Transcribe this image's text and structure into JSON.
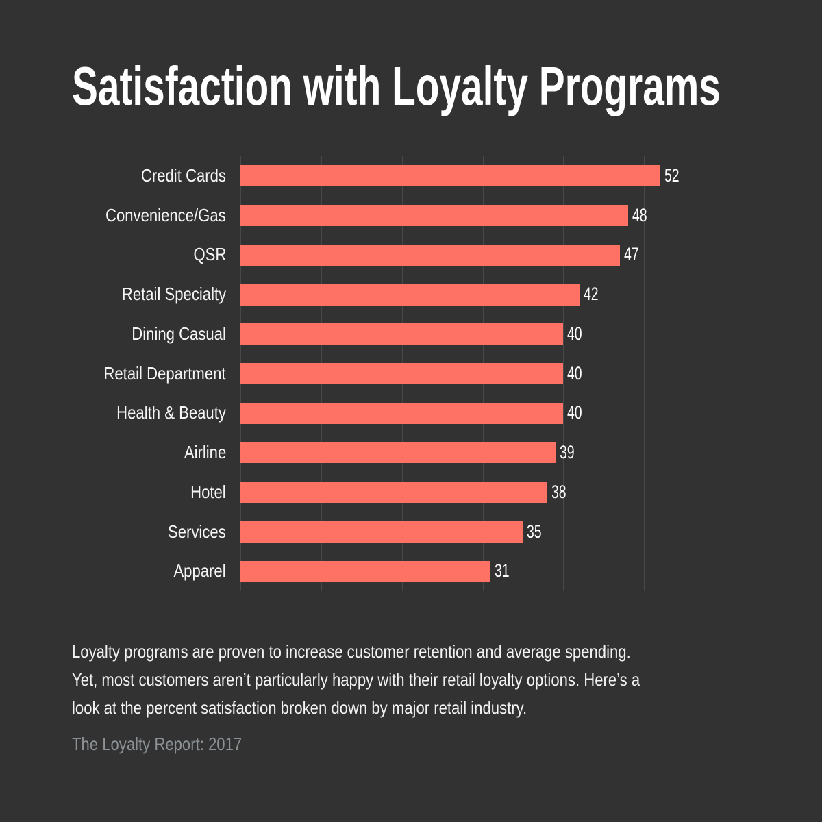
{
  "title": "Satisfaction with Loyalty Programs",
  "chart_data": {
    "type": "bar",
    "orientation": "horizontal",
    "title": "Satisfaction with Loyalty Programs",
    "categories": [
      "Credit Cards",
      "Convenience/Gas",
      "QSR",
      "Retail Specialty",
      "Dining Casual",
      "Retail Department",
      "Health & Beauty",
      "Airline",
      "Hotel",
      "Services",
      "Apparel"
    ],
    "values": [
      52,
      48,
      47,
      42,
      40,
      40,
      40,
      39,
      38,
      35,
      31
    ],
    "xlabel": "",
    "ylabel": "",
    "xlim": [
      0,
      60
    ],
    "gridline_step": 10,
    "grid": "vertical",
    "legend": "none",
    "value_labels": "outside-right",
    "units": "percent satisfaction"
  },
  "description": {
    "lines": [
      "Loyalty programs are proven to increase customer retention and average spending.",
      "Yet, most customers aren’t particularly happy with their retail loyalty options. Here’s a",
      "look at the percent satisfaction broken down by major retail industry."
    ]
  },
  "source": "The Loyalty Report: 2017",
  "colors": {
    "background": "#323232",
    "bar": "#fd7264",
    "gridline": "#484848",
    "title_text": "#ffffff",
    "label_text": "#f5f5f5",
    "value_text": "#ffffff",
    "body_text": "#f2f2f2",
    "source_text": "#8b9194"
  }
}
